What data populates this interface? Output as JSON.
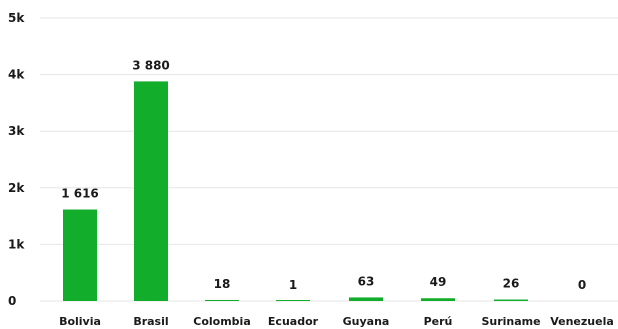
{
  "chart_data": {
    "type": "bar",
    "categories": [
      "Bolivia",
      "Brasil",
      "Colombia",
      "Ecuador",
      "Guyana",
      "Perú",
      "Suriname",
      "Venezuela"
    ],
    "values": [
      1616,
      3880,
      18,
      1,
      63,
      49,
      26,
      0
    ],
    "data_labels": [
      "1 616",
      "3 880",
      "18",
      "1",
      "63",
      "49",
      "26",
      "0"
    ],
    "y_ticks": [
      {
        "value": 0,
        "label": "0"
      },
      {
        "value": 1000,
        "label": "1k"
      },
      {
        "value": 2000,
        "label": "2k"
      },
      {
        "value": 3000,
        "label": "3k"
      },
      {
        "value": 4000,
        "label": "4k"
      },
      {
        "value": 5000,
        "label": "5k"
      }
    ],
    "ylim": [
      0,
      5000
    ],
    "grid": true,
    "bar_color": "#12ad2b",
    "title": "",
    "xlabel": "",
    "ylabel": ""
  }
}
